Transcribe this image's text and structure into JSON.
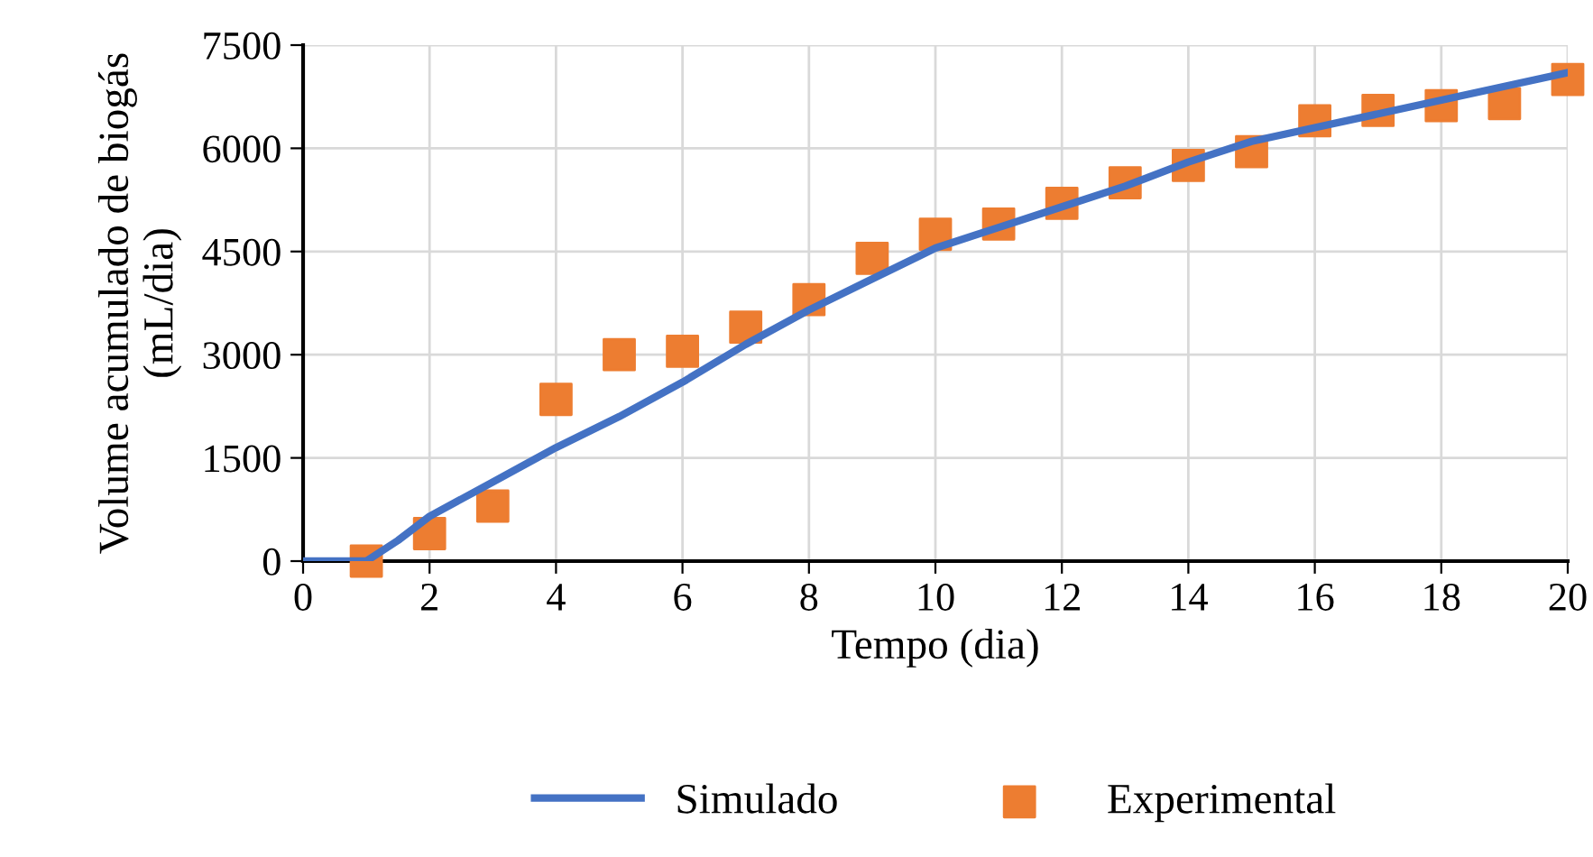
{
  "chart_data": {
    "type": "line",
    "xlabel": "Tempo (dia)",
    "ylabel": "Volume acumulado de biogás\n(mL/dia)",
    "xlim": [
      0,
      20
    ],
    "xticks": [
      0,
      2,
      4,
      6,
      8,
      10,
      12,
      14,
      16,
      18,
      20
    ],
    "ylim": [
      0,
      7500
    ],
    "yticks": [
      0,
      1500,
      3000,
      4500,
      6000,
      7500
    ],
    "grid": true,
    "legend": "bottom",
    "series": [
      {
        "name": "Simulado",
        "color": "#4472c4",
        "marker": "none",
        "line_style": "solid",
        "x": [
          0,
          1,
          1.5,
          2,
          3,
          4,
          5,
          6,
          7,
          8,
          9,
          10,
          11,
          12,
          13,
          14,
          15,
          16,
          17,
          18,
          19,
          20
        ],
        "values": [
          0,
          0,
          300,
          650,
          1150,
          1650,
          2100,
          2600,
          3150,
          3650,
          4100,
          4550,
          4850,
          5150,
          5450,
          5800,
          6100,
          6300,
          6500,
          6700,
          6900,
          7100
        ]
      },
      {
        "name": "Experimental",
        "type": "scatter",
        "color": "#ed7d31",
        "marker": "square",
        "x": [
          1,
          2,
          3,
          4,
          5,
          6,
          7,
          8,
          9,
          10,
          11,
          12,
          13,
          14,
          15,
          16,
          17,
          18,
          19,
          20
        ],
        "values": [
          0,
          400,
          800,
          2350,
          3000,
          3050,
          3400,
          3800,
          4400,
          4750,
          4900,
          5200,
          5500,
          5750,
          5950,
          6400,
          6550,
          6620,
          6650,
          7000
        ]
      }
    ]
  }
}
